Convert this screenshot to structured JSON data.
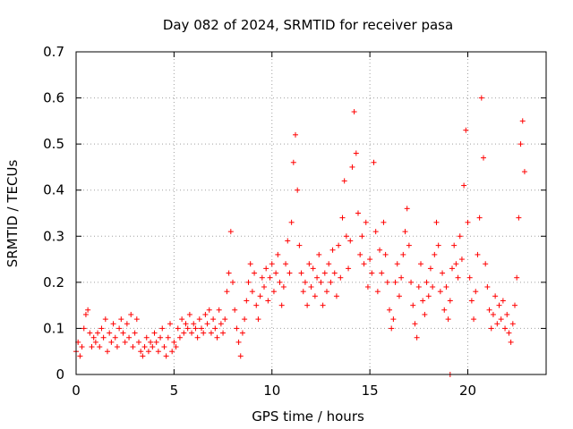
{
  "chart_data": {
    "type": "scatter",
    "title": "Day 082 of 2024, SRMTID for receiver pasa",
    "xlabel": "GPS time / hours",
    "ylabel": "SRMTID / TECUs",
    "xlim": [
      0,
      24
    ],
    "ylim": [
      0,
      0.7
    ],
    "xticks": [
      0,
      5,
      10,
      15,
      20
    ],
    "xtick_labels": [
      "0",
      "5",
      "10",
      "15",
      "20"
    ],
    "yticks": [
      0,
      0.1,
      0.2,
      0.3,
      0.4,
      0.5,
      0.6,
      0.7
    ],
    "ytick_labels": [
      "0",
      "0.1",
      "0.2",
      "0.3",
      "0.4",
      "0.5",
      "0.6",
      "0.7"
    ],
    "grid": true,
    "marker": "plus",
    "color": "#ff0000",
    "series": [
      {
        "name": "SRMTID",
        "points": [
          [
            0.0,
            0.05
          ],
          [
            0.1,
            0.07
          ],
          [
            0.2,
            0.04
          ],
          [
            0.3,
            0.06
          ],
          [
            0.4,
            0.1
          ],
          [
            0.5,
            0.13
          ],
          [
            0.6,
            0.14
          ],
          [
            0.7,
            0.09
          ],
          [
            0.8,
            0.06
          ],
          [
            0.9,
            0.08
          ],
          [
            1.0,
            0.07
          ],
          [
            1.1,
            0.09
          ],
          [
            1.2,
            0.06
          ],
          [
            1.3,
            0.1
          ],
          [
            1.4,
            0.08
          ],
          [
            1.5,
            0.12
          ],
          [
            1.6,
            0.05
          ],
          [
            1.7,
            0.09
          ],
          [
            1.8,
            0.07
          ],
          [
            1.9,
            0.11
          ],
          [
            2.0,
            0.08
          ],
          [
            2.1,
            0.06
          ],
          [
            2.2,
            0.1
          ],
          [
            2.3,
            0.12
          ],
          [
            2.4,
            0.09
          ],
          [
            2.5,
            0.07
          ],
          [
            2.6,
            0.11
          ],
          [
            2.7,
            0.08
          ],
          [
            2.8,
            0.13
          ],
          [
            2.9,
            0.06
          ],
          [
            3.0,
            0.09
          ],
          [
            3.1,
            0.12
          ],
          [
            3.2,
            0.07
          ],
          [
            3.3,
            0.05
          ],
          [
            3.4,
            0.04
          ],
          [
            3.5,
            0.06
          ],
          [
            3.6,
            0.08
          ],
          [
            3.7,
            0.05
          ],
          [
            3.8,
            0.07
          ],
          [
            3.9,
            0.06
          ],
          [
            4.0,
            0.09
          ],
          [
            4.1,
            0.07
          ],
          [
            4.2,
            0.05
          ],
          [
            4.3,
            0.08
          ],
          [
            4.4,
            0.1
          ],
          [
            4.5,
            0.06
          ],
          [
            4.6,
            0.04
          ],
          [
            4.7,
            0.08
          ],
          [
            4.8,
            0.11
          ],
          [
            4.9,
            0.05
          ],
          [
            5.0,
            0.07
          ],
          [
            5.1,
            0.06
          ],
          [
            5.2,
            0.1
          ],
          [
            5.3,
            0.08
          ],
          [
            5.4,
            0.12
          ],
          [
            5.5,
            0.09
          ],
          [
            5.6,
            0.11
          ],
          [
            5.7,
            0.1
          ],
          [
            5.8,
            0.13
          ],
          [
            5.9,
            0.09
          ],
          [
            6.0,
            0.11
          ],
          [
            6.1,
            0.1
          ],
          [
            6.2,
            0.08
          ],
          [
            6.3,
            0.12
          ],
          [
            6.4,
            0.1
          ],
          [
            6.5,
            0.09
          ],
          [
            6.6,
            0.13
          ],
          [
            6.7,
            0.11
          ],
          [
            6.8,
            0.14
          ],
          [
            6.9,
            0.09
          ],
          [
            7.0,
            0.12
          ],
          [
            7.1,
            0.1
          ],
          [
            7.2,
            0.08
          ],
          [
            7.3,
            0.14
          ],
          [
            7.4,
            0.11
          ],
          [
            7.5,
            0.09
          ],
          [
            7.6,
            0.12
          ],
          [
            7.7,
            0.18
          ],
          [
            7.8,
            0.22
          ],
          [
            7.9,
            0.31
          ],
          [
            8.0,
            0.2
          ],
          [
            8.1,
            0.14
          ],
          [
            8.2,
            0.1
          ],
          [
            8.3,
            0.07
          ],
          [
            8.4,
            0.04
          ],
          [
            8.5,
            0.09
          ],
          [
            8.6,
            0.12
          ],
          [
            8.7,
            0.16
          ],
          [
            8.8,
            0.2
          ],
          [
            8.9,
            0.24
          ],
          [
            9.0,
            0.18
          ],
          [
            9.1,
            0.22
          ],
          [
            9.2,
            0.15
          ],
          [
            9.3,
            0.12
          ],
          [
            9.4,
            0.17
          ],
          [
            9.5,
            0.21
          ],
          [
            9.6,
            0.19
          ],
          [
            9.7,
            0.23
          ],
          [
            9.8,
            0.16
          ],
          [
            9.9,
            0.21
          ],
          [
            10.0,
            0.24
          ],
          [
            10.1,
            0.18
          ],
          [
            10.2,
            0.22
          ],
          [
            10.3,
            0.26
          ],
          [
            10.4,
            0.2
          ],
          [
            10.5,
            0.15
          ],
          [
            10.6,
            0.19
          ],
          [
            10.7,
            0.24
          ],
          [
            10.8,
            0.29
          ],
          [
            10.9,
            0.22
          ],
          [
            11.0,
            0.33
          ],
          [
            11.1,
            0.46
          ],
          [
            11.2,
            0.52
          ],
          [
            11.3,
            0.4
          ],
          [
            11.4,
            0.28
          ],
          [
            11.5,
            0.22
          ],
          [
            11.6,
            0.18
          ],
          [
            11.7,
            0.2
          ],
          [
            11.8,
            0.15
          ],
          [
            11.9,
            0.24
          ],
          [
            12.0,
            0.19
          ],
          [
            12.1,
            0.23
          ],
          [
            12.2,
            0.17
          ],
          [
            12.3,
            0.21
          ],
          [
            12.4,
            0.26
          ],
          [
            12.5,
            0.2
          ],
          [
            12.6,
            0.15
          ],
          [
            12.7,
            0.22
          ],
          [
            12.8,
            0.18
          ],
          [
            12.9,
            0.24
          ],
          [
            13.0,
            0.2
          ],
          [
            13.1,
            0.27
          ],
          [
            13.2,
            0.22
          ],
          [
            13.3,
            0.17
          ],
          [
            13.4,
            0.28
          ],
          [
            13.5,
            0.21
          ],
          [
            13.6,
            0.34
          ],
          [
            13.7,
            0.42
          ],
          [
            13.8,
            0.3
          ],
          [
            13.9,
            0.23
          ],
          [
            14.0,
            0.29
          ],
          [
            14.1,
            0.45
          ],
          [
            14.2,
            0.57
          ],
          [
            14.3,
            0.48
          ],
          [
            14.4,
            0.35
          ],
          [
            14.5,
            0.26
          ],
          [
            14.6,
            0.3
          ],
          [
            14.7,
            0.24
          ],
          [
            14.8,
            0.33
          ],
          [
            14.9,
            0.19
          ],
          [
            15.0,
            0.25
          ],
          [
            15.1,
            0.22
          ],
          [
            15.2,
            0.46
          ],
          [
            15.3,
            0.31
          ],
          [
            15.4,
            0.18
          ],
          [
            15.5,
            0.27
          ],
          [
            15.6,
            0.22
          ],
          [
            15.7,
            0.33
          ],
          [
            15.8,
            0.26
          ],
          [
            15.9,
            0.2
          ],
          [
            16.0,
            0.14
          ],
          [
            16.1,
            0.1
          ],
          [
            16.2,
            0.12
          ],
          [
            16.3,
            0.2
          ],
          [
            16.4,
            0.24
          ],
          [
            16.5,
            0.17
          ],
          [
            16.6,
            0.21
          ],
          [
            16.7,
            0.26
          ],
          [
            16.8,
            0.31
          ],
          [
            16.9,
            0.36
          ],
          [
            17.0,
            0.28
          ],
          [
            17.1,
            0.2
          ],
          [
            17.2,
            0.15
          ],
          [
            17.3,
            0.11
          ],
          [
            17.4,
            0.08
          ],
          [
            17.5,
            0.19
          ],
          [
            17.6,
            0.24
          ],
          [
            17.7,
            0.16
          ],
          [
            17.8,
            0.13
          ],
          [
            17.9,
            0.2
          ],
          [
            18.0,
            0.17
          ],
          [
            18.1,
            0.23
          ],
          [
            18.2,
            0.19
          ],
          [
            18.3,
            0.26
          ],
          [
            18.4,
            0.33
          ],
          [
            18.5,
            0.28
          ],
          [
            18.6,
            0.18
          ],
          [
            18.7,
            0.22
          ],
          [
            18.8,
            0.14
          ],
          [
            18.9,
            0.19
          ],
          [
            19.0,
            0.12
          ],
          [
            19.1,
            0.16
          ],
          [
            19.2,
            0.23
          ],
          [
            19.3,
            0.28
          ],
          [
            19.4,
            0.24
          ],
          [
            19.5,
            0.21
          ],
          [
            19.6,
            0.3
          ],
          [
            19.7,
            0.25
          ],
          [
            19.8,
            0.41
          ],
          [
            19.9,
            0.53
          ],
          [
            20.0,
            0.33
          ],
          [
            20.1,
            0.21
          ],
          [
            20.2,
            0.16
          ],
          [
            20.3,
            0.12
          ],
          [
            20.4,
            0.18
          ],
          [
            20.5,
            0.26
          ],
          [
            20.6,
            0.34
          ],
          [
            20.7,
            0.6
          ],
          [
            20.8,
            0.47
          ],
          [
            20.9,
            0.24
          ],
          [
            21.0,
            0.19
          ],
          [
            21.1,
            0.14
          ],
          [
            21.2,
            0.1
          ],
          [
            21.3,
            0.13
          ],
          [
            21.4,
            0.17
          ],
          [
            21.5,
            0.11
          ],
          [
            21.6,
            0.15
          ],
          [
            21.7,
            0.12
          ],
          [
            21.8,
            0.16
          ],
          [
            21.9,
            0.1
          ],
          [
            22.0,
            0.13
          ],
          [
            22.1,
            0.09
          ],
          [
            22.2,
            0.07
          ],
          [
            22.3,
            0.11
          ],
          [
            22.4,
            0.15
          ],
          [
            22.5,
            0.21
          ],
          [
            22.6,
            0.34
          ],
          [
            22.7,
            0.5
          ],
          [
            22.8,
            0.55
          ],
          [
            22.9,
            0.44
          ],
          [
            19.1,
            0.0
          ]
        ]
      }
    ]
  }
}
